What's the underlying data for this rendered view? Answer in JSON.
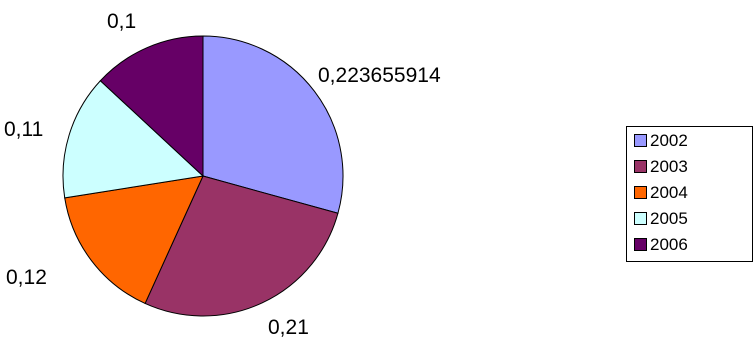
{
  "chart_data": {
    "type": "pie",
    "labels": [
      "2002",
      "2003",
      "2004",
      "2005",
      "2006"
    ],
    "values": [
      0.223655914,
      0.21,
      0.12,
      0.11,
      0.1
    ],
    "data_labels": [
      "0,223655914",
      "0,21",
      "0,12",
      "0,11",
      "0,1"
    ],
    "colors": [
      "#9999FF",
      "#993366",
      "#FF6600",
      "#CCFFFF",
      "#660066"
    ],
    "legend_position": "right",
    "start_angle_deg": 0,
    "direction": "clockwise"
  }
}
